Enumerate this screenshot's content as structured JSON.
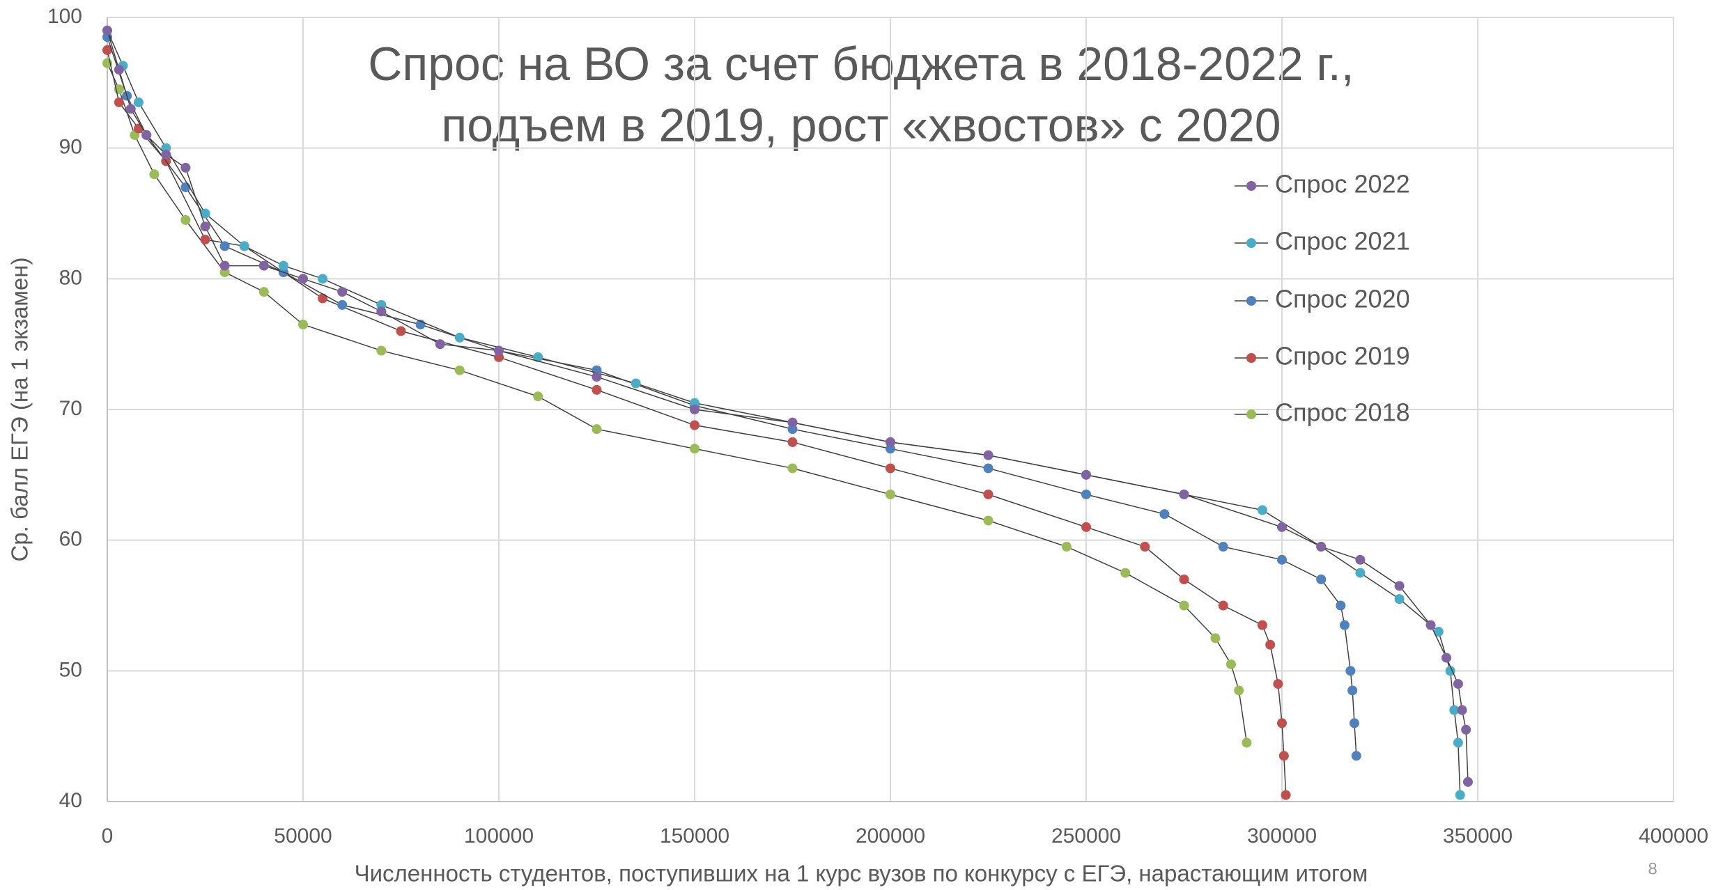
{
  "chart_data": {
    "type": "line",
    "title": [
      "Спрос на ВО за счет бюджета в 2018-2022 г.,",
      "подъем в 2019, рост «хвостов» с 2020"
    ],
    "x_label": "Численность студентов, поступивших на 1 курс вузов по конкурсу с ЕГЭ, нарастающим итогом",
    "y_label": "Ср. балл ЕГЭ (на 1 экзамен)",
    "page_number": "8",
    "xlim": [
      0,
      400000
    ],
    "xticks": [
      0,
      50000,
      100000,
      150000,
      200000,
      250000,
      300000,
      350000,
      400000
    ],
    "ylim": [
      40,
      100
    ],
    "yticks": [
      40,
      50,
      60,
      70,
      80,
      90,
      100
    ],
    "grid": true,
    "legend": "right",
    "series": [
      {
        "name": "Спрос 2022",
        "color": "#8064a2",
        "x": [
          0,
          3000,
          6000,
          10000,
          15000,
          20000,
          25000,
          30000,
          40000,
          50000,
          60000,
          70000,
          85000,
          100000,
          125000,
          150000,
          175000,
          200000,
          225000,
          250000,
          275000,
          300000,
          310000,
          320000,
          330000,
          338000,
          342000,
          345000,
          346000,
          347000,
          347500
        ],
        "values": [
          99,
          96,
          93,
          91,
          89.5,
          88.5,
          84,
          81,
          81,
          80,
          79,
          77.5,
          75,
          74.5,
          72.5,
          70,
          69,
          67.5,
          66.5,
          65,
          63.5,
          61,
          59.5,
          58.5,
          56.5,
          53.5,
          51,
          49,
          47,
          45.5,
          41.5
        ]
      },
      {
        "name": "Спрос 2021",
        "color": "#4bacc6",
        "x": [
          0,
          4000,
          8000,
          15000,
          25000,
          35000,
          45000,
          55000,
          70000,
          90000,
          110000,
          135000,
          150000,
          175000,
          200000,
          225000,
          250000,
          275000,
          295000,
          310000,
          320000,
          330000,
          340000,
          343000,
          344000,
          345000,
          345500
        ],
        "values": [
          99,
          96.3,
          93.5,
          90,
          85,
          82.5,
          81,
          80,
          78,
          75.5,
          74,
          72,
          70.5,
          69,
          67.5,
          66.5,
          65,
          63.5,
          62.3,
          59.5,
          57.5,
          55.5,
          53,
          50,
          47,
          44.5,
          40.5
        ]
      },
      {
        "name": "Спрос 2020",
        "color": "#4f81bd",
        "x": [
          0,
          5000,
          10000,
          20000,
          30000,
          45000,
          60000,
          80000,
          100000,
          125000,
          150000,
          175000,
          200000,
          225000,
          250000,
          270000,
          285000,
          300000,
          310000,
          315000,
          316000,
          317500,
          318000,
          318500,
          319000
        ],
        "values": [
          98.5,
          94,
          91,
          87,
          82.5,
          80.5,
          78,
          76.5,
          74.5,
          73,
          70.3,
          68.5,
          67,
          65.5,
          63.5,
          62,
          59.5,
          58.5,
          57,
          55,
          53.5,
          50,
          48.5,
          46,
          43.5
        ]
      },
      {
        "name": "Спрос 2019",
        "color": "#c0504d",
        "x": [
          0,
          3000,
          8000,
          15000,
          25000,
          35000,
          45000,
          55000,
          75000,
          100000,
          125000,
          150000,
          175000,
          200000,
          225000,
          250000,
          265000,
          275000,
          285000,
          295000,
          297000,
          299000,
          300000,
          300500,
          301000
        ],
        "values": [
          97.5,
          93.5,
          91.5,
          89,
          83,
          82.5,
          80.5,
          78.5,
          76,
          74,
          71.5,
          68.8,
          67.5,
          65.5,
          63.5,
          61,
          59.5,
          57,
          55,
          53.5,
          52,
          49,
          46,
          43.5,
          40.5
        ]
      },
      {
        "name": "Спрос 2018",
        "color": "#9bbb59",
        "x": [
          0,
          3000,
          7000,
          12000,
          20000,
          30000,
          40000,
          50000,
          70000,
          90000,
          110000,
          125000,
          150000,
          175000,
          200000,
          225000,
          245000,
          260000,
          275000,
          283000,
          287000,
          289000,
          291000
        ],
        "values": [
          96.5,
          94.5,
          91,
          88,
          84.5,
          80.5,
          79,
          76.5,
          74.5,
          73,
          71,
          68.5,
          67,
          65.5,
          63.5,
          61.5,
          59.5,
          57.5,
          55,
          52.5,
          50.5,
          48.5,
          44.5
        ]
      }
    ]
  }
}
